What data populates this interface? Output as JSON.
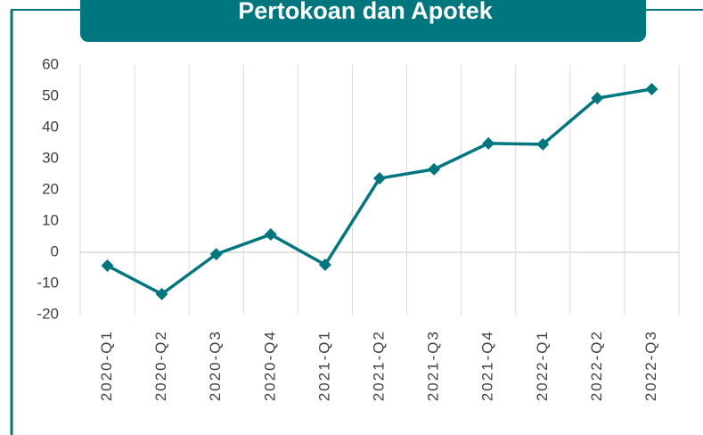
{
  "chart_data": {
    "type": "line",
    "title": "Pertokoan dan Apotek",
    "categories": [
      "2020-Q1",
      "2020-Q2",
      "2020-Q3",
      "2020-Q4",
      "2021-Q1",
      "2021-Q2",
      "2021-Q3",
      "2021-Q4",
      "2022-Q1",
      "2022-Q2",
      "2022-Q3"
    ],
    "series": [
      {
        "name": "Pertokoan dan Apotek",
        "color": "#00777f",
        "values": [
          -4.3,
          -13.4,
          -0.6,
          5.7,
          -4.0,
          23.7,
          26.6,
          34.9,
          34.6,
          49.4,
          52.3
        ]
      }
    ],
    "ylim": [
      -20,
      60
    ],
    "yticks": [
      -20,
      -10,
      0,
      10,
      20,
      30,
      40,
      50,
      60
    ],
    "grid": "vertical",
    "color": "#00777f"
  }
}
